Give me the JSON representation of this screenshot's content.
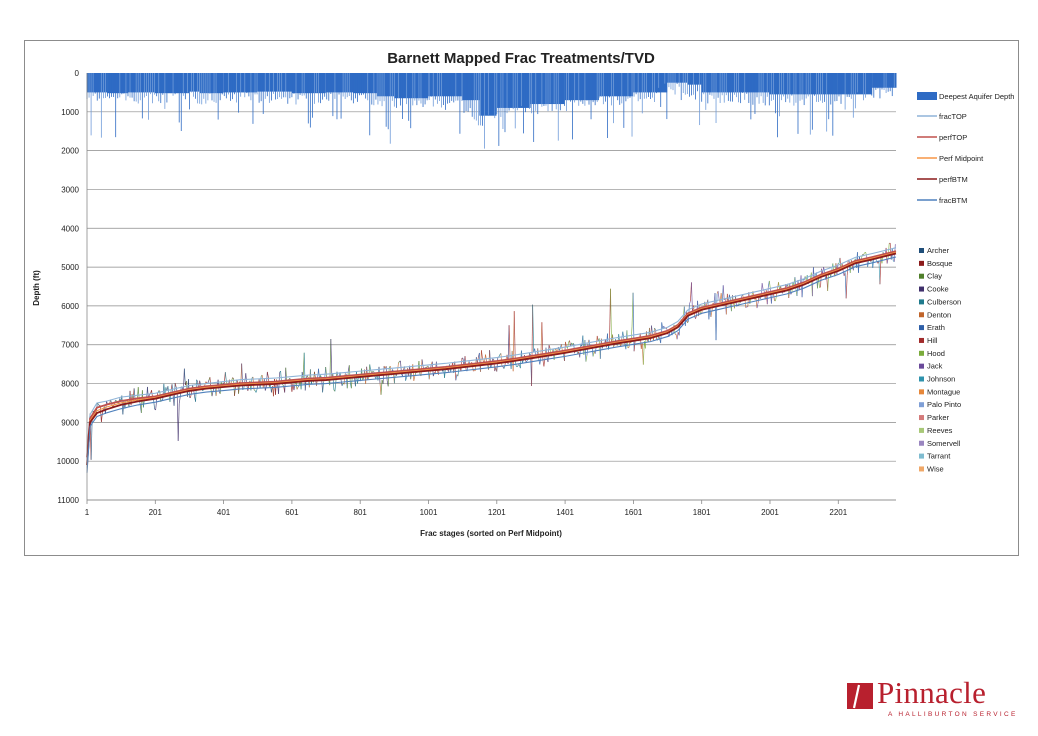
{
  "chart_data": {
    "type": "line",
    "title": "Barnett Mapped Frac Treatments/TVD",
    "xlabel": "Frac stages (sorted on Perf Midpoint)",
    "ylabel": "Depth (ft)",
    "y_inverted": true,
    "ylim": [
      0,
      11000
    ],
    "xlim": [
      1,
      2370
    ],
    "yticks": [
      0,
      1000,
      2000,
      3000,
      4000,
      5000,
      6000,
      7000,
      8000,
      9000,
      10000,
      11000
    ],
    "xticks": [
      1,
      201,
      401,
      601,
      801,
      1001,
      1201,
      1401,
      1601,
      1801,
      2001,
      2201
    ],
    "grid": "horizontal",
    "legend_position": "right",
    "series": [
      {
        "name": "Deepest Aquifer Depth",
        "kind": "bar",
        "color": "#2e6bc4",
        "x": [
          1,
          60,
          120,
          200,
          300,
          330,
          400,
          500,
          600,
          700,
          780,
          850,
          900,
          1000,
          1100,
          1150,
          1200,
          1300,
          1400,
          1500,
          1600,
          1700,
          1760,
          1800,
          1900,
          2000,
          2100,
          2200,
          2300,
          2370
        ],
        "y": [
          500,
          520,
          500,
          520,
          480,
          520,
          500,
          480,
          520,
          500,
          520,
          600,
          650,
          600,
          700,
          1100,
          900,
          800,
          700,
          600,
          500,
          250,
          300,
          500,
          500,
          550,
          550,
          550,
          380,
          380
        ]
      },
      {
        "name": "fracTOP",
        "kind": "line",
        "color": "#8fb4d8",
        "x": [
          1,
          10,
          30,
          60,
          100,
          150,
          201,
          250,
          300,
          350,
          401,
          450,
          501,
          551,
          601,
          651,
          701,
          751,
          801,
          851,
          901,
          951,
          1001,
          1051,
          1101,
          1151,
          1201,
          1251,
          1301,
          1351,
          1401,
          1451,
          1501,
          1551,
          1601,
          1651,
          1701,
          1731,
          1761,
          1801,
          1851,
          1901,
          1951,
          2001,
          2051,
          2101,
          2151,
          2201,
          2251,
          2301,
          2370
        ],
        "y": [
          9700,
          8800,
          8500,
          8450,
          8350,
          8300,
          8250,
          8150,
          8050,
          8000,
          7950,
          7900,
          7880,
          7860,
          7820,
          7780,
          7760,
          7720,
          7680,
          7640,
          7600,
          7560,
          7520,
          7480,
          7430,
          7380,
          7330,
          7270,
          7200,
          7130,
          7060,
          6980,
          6900,
          6820,
          6750,
          6680,
          6550,
          6400,
          6100,
          5950,
          5850,
          5750,
          5650,
          5550,
          5450,
          5300,
          5100,
          4950,
          4750,
          4650,
          4500
        ]
      },
      {
        "name": "perfTOP",
        "kind": "line",
        "color": "#c0504d",
        "x": [
          1,
          10,
          30,
          60,
          100,
          150,
          201,
          250,
          300,
          350,
          401,
          450,
          501,
          551,
          601,
          651,
          701,
          751,
          801,
          851,
          901,
          951,
          1001,
          1051,
          1101,
          1151,
          1201,
          1251,
          1301,
          1351,
          1401,
          1451,
          1501,
          1551,
          1601,
          1651,
          1701,
          1731,
          1761,
          1801,
          1851,
          1901,
          1951,
          2001,
          2051,
          2101,
          2151,
          2201,
          2251,
          2301,
          2370
        ],
        "y": [
          9900,
          8900,
          8620,
          8540,
          8450,
          8380,
          8330,
          8230,
          8130,
          8070,
          8030,
          7990,
          7970,
          7950,
          7910,
          7870,
          7850,
          7810,
          7770,
          7730,
          7690,
          7650,
          7610,
          7570,
          7520,
          7470,
          7420,
          7360,
          7290,
          7220,
          7150,
          7070,
          6990,
          6910,
          6840,
          6770,
          6640,
          6490,
          6190,
          6040,
          5940,
          5840,
          5740,
          5640,
          5540,
          5390,
          5190,
          5040,
          4840,
          4740,
          4590
        ]
      },
      {
        "name": "Perf Midpoint",
        "kind": "line",
        "color": "#f79646",
        "x": [
          1,
          10,
          30,
          60,
          100,
          150,
          201,
          250,
          300,
          350,
          401,
          450,
          501,
          551,
          601,
          651,
          701,
          751,
          801,
          851,
          901,
          951,
          1001,
          1051,
          1101,
          1151,
          1201,
          1251,
          1301,
          1351,
          1401,
          1451,
          1501,
          1551,
          1601,
          1651,
          1701,
          1731,
          1761,
          1801,
          1851,
          1901,
          1951,
          2001,
          2051,
          2101,
          2151,
          2201,
          2251,
          2301,
          2370
        ],
        "y": [
          10000,
          8950,
          8700,
          8600,
          8500,
          8420,
          8360,
          8260,
          8160,
          8100,
          8060,
          8020,
          8000,
          7980,
          7940,
          7900,
          7880,
          7840,
          7800,
          7760,
          7720,
          7680,
          7640,
          7600,
          7550,
          7500,
          7450,
          7390,
          7320,
          7250,
          7180,
          7100,
          7020,
          6940,
          6870,
          6800,
          6670,
          6520,
          6220,
          6070,
          5970,
          5870,
          5770,
          5670,
          5570,
          5420,
          5220,
          5070,
          4870,
          4770,
          4620
        ]
      },
      {
        "name": "perfBTM",
        "kind": "line",
        "color": "#8b1a1a",
        "x": [
          1,
          10,
          30,
          60,
          100,
          150,
          201,
          250,
          300,
          350,
          401,
          450,
          501,
          551,
          601,
          651,
          701,
          751,
          801,
          851,
          901,
          951,
          1001,
          1051,
          1101,
          1151,
          1201,
          1251,
          1301,
          1351,
          1401,
          1451,
          1501,
          1551,
          1601,
          1651,
          1701,
          1731,
          1761,
          1801,
          1851,
          1901,
          1951,
          2001,
          2051,
          2101,
          2151,
          2201,
          2251,
          2301,
          2370
        ],
        "y": [
          10100,
          9000,
          8760,
          8660,
          8550,
          8460,
          8390,
          8290,
          8190,
          8130,
          8090,
          8050,
          8030,
          8010,
          7970,
          7930,
          7910,
          7870,
          7830,
          7790,
          7750,
          7710,
          7670,
          7630,
          7580,
          7530,
          7480,
          7420,
          7350,
          7280,
          7210,
          7130,
          7050,
          6970,
          6900,
          6830,
          6700,
          6550,
          6250,
          6100,
          6000,
          5900,
          5800,
          5700,
          5600,
          5450,
          5250,
          5100,
          4900,
          4800,
          4650
        ]
      },
      {
        "name": "fracBTM",
        "kind": "line",
        "color": "#4f81bd",
        "x": [
          1,
          10,
          30,
          60,
          100,
          150,
          201,
          250,
          300,
          350,
          401,
          450,
          501,
          551,
          601,
          651,
          701,
          751,
          801,
          851,
          901,
          951,
          1001,
          1051,
          1101,
          1151,
          1201,
          1251,
          1301,
          1351,
          1401,
          1451,
          1501,
          1551,
          1601,
          1651,
          1701,
          1731,
          1761,
          1801,
          1851,
          1901,
          1951,
          2001,
          2051,
          2101,
          2151,
          2201,
          2251,
          2301,
          2370
        ],
        "y": [
          10300,
          9100,
          8850,
          8750,
          8650,
          8550,
          8480,
          8380,
          8280,
          8220,
          8180,
          8140,
          8120,
          8100,
          8060,
          8020,
          8000,
          7960,
          7920,
          7880,
          7840,
          7800,
          7760,
          7720,
          7670,
          7620,
          7570,
          7510,
          7440,
          7370,
          7300,
          7220,
          7140,
          7060,
          6990,
          6920,
          6790,
          6640,
          6340,
          6190,
          6090,
          5990,
          5890,
          5790,
          5690,
          5540,
          5340,
          5190,
          4990,
          4890,
          4740
        ]
      }
    ],
    "county_legend": [
      {
        "name": "Archer",
        "color": "#1f4e79"
      },
      {
        "name": "Bosque",
        "color": "#8b1a1a"
      },
      {
        "name": "Clay",
        "color": "#4f7f2a"
      },
      {
        "name": "Cooke",
        "color": "#3f2f6b"
      },
      {
        "name": "Culberson",
        "color": "#1f7a8c"
      },
      {
        "name": "Denton",
        "color": "#c0642a"
      },
      {
        "name": "Erath",
        "color": "#2e5fa8"
      },
      {
        "name": "Hill",
        "color": "#a12b2b"
      },
      {
        "name": "Hood",
        "color": "#7aab3a"
      },
      {
        "name": "Jack",
        "color": "#6a4a9a"
      },
      {
        "name": "Johnson",
        "color": "#2f93ad"
      },
      {
        "name": "Montague",
        "color": "#e6873a"
      },
      {
        "name": "Palo Pinto",
        "color": "#7f9fd6"
      },
      {
        "name": "Parker",
        "color": "#d47a7a"
      },
      {
        "name": "Reeves",
        "color": "#a8c877"
      },
      {
        "name": "Somervell",
        "color": "#9a86c0"
      },
      {
        "name": "Tarrant",
        "color": "#7fbcd0"
      },
      {
        "name": "Wise",
        "color": "#f0a868"
      }
    ]
  },
  "logo": {
    "word": "Pinnacle",
    "tagline": "A HALLIBURTON SERVICE"
  }
}
